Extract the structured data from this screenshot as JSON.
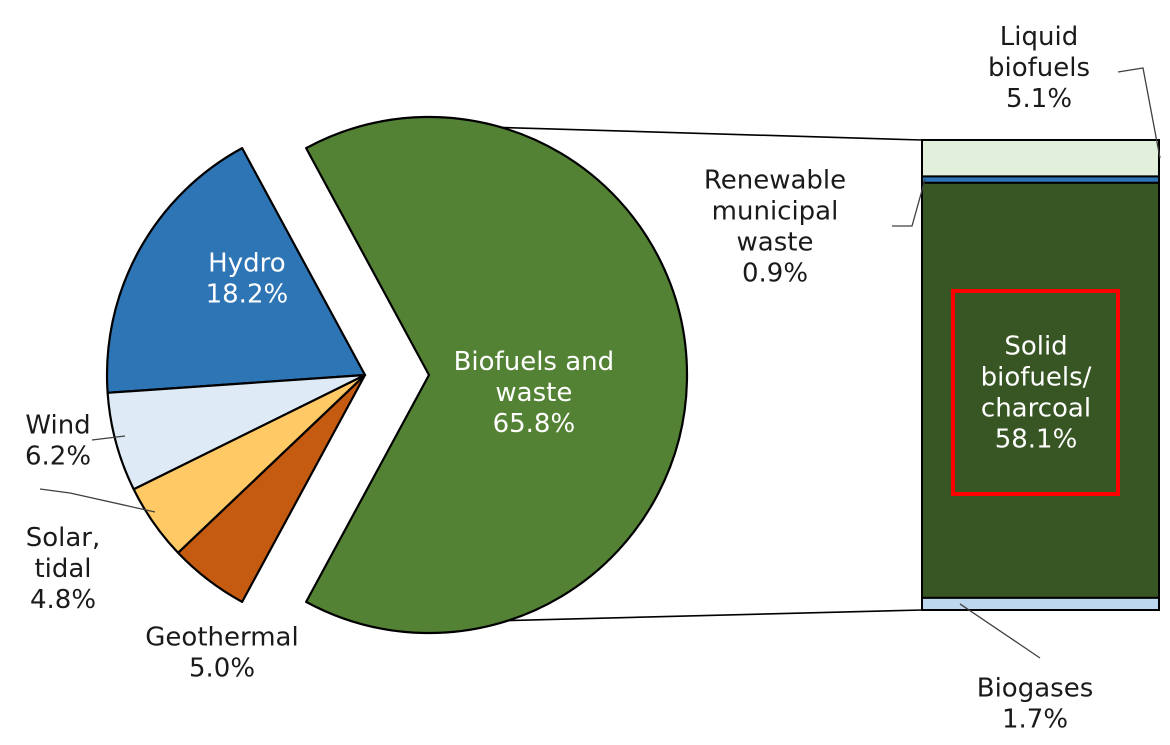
{
  "chart_data": [
    {
      "type": "pie",
      "title": "",
      "slices": [
        {
          "name": "Hydro",
          "display": [
            "Hydro"
          ],
          "value": 18.2,
          "value_label": "18.2%",
          "color": "#2e75b6",
          "label_color": "#ffffff"
        },
        {
          "name": "Biofuels and waste",
          "display": [
            "Biofuels and",
            "waste"
          ],
          "value": 65.8,
          "value_label": "65.8%",
          "color": "#548235",
          "label_color": "#ffffff",
          "exploded": true
        },
        {
          "name": "Geothermal",
          "display": [
            "Geothermal"
          ],
          "value": 5.0,
          "value_label": "5.0%",
          "color": "#c55a11",
          "label_color": "#1a1a1a"
        },
        {
          "name": "Solar, tidal",
          "display": [
            "Solar,",
            "tidal"
          ],
          "value": 4.8,
          "value_label": "4.8%",
          "color": "#ffc966",
          "label_color": "#1a1a1a"
        },
        {
          "name": "Wind",
          "display": [
            "Wind"
          ],
          "value": 6.2,
          "value_label": "6.2%",
          "color": "#deebf7",
          "label_color": "#1a1a1a"
        }
      ]
    },
    {
      "type": "bar",
      "stacked": true,
      "title": "",
      "parent": "Biofuels and waste",
      "segments": [
        {
          "name": "Liquid biofuels",
          "display": [
            "Liquid",
            "biofuels"
          ],
          "value": 5.1,
          "value_label": "5.1%",
          "color": "#e2efda",
          "label_color": "#1a1a1a"
        },
        {
          "name": "Renewable municipal waste",
          "display": [
            "Renewable",
            "municipal",
            "waste"
          ],
          "value": 0.9,
          "value_label": "0.9%",
          "color": "#2e75b6",
          "label_color": "#1a1a1a"
        },
        {
          "name": "Solid biofuels/charcoal",
          "display": [
            "Solid",
            "biofuels/",
            "charcoal"
          ],
          "value": 58.1,
          "value_label": "58.1%",
          "color": "#375623",
          "label_color": "#ffffff",
          "highlighted": true
        },
        {
          "name": "Biogases",
          "display": [
            "Biogases"
          ],
          "value": 1.7,
          "value_label": "1.7%",
          "color": "#bdd7ee",
          "label_color": "#1a1a1a"
        }
      ],
      "highlight_color": "#ff0000"
    }
  ]
}
